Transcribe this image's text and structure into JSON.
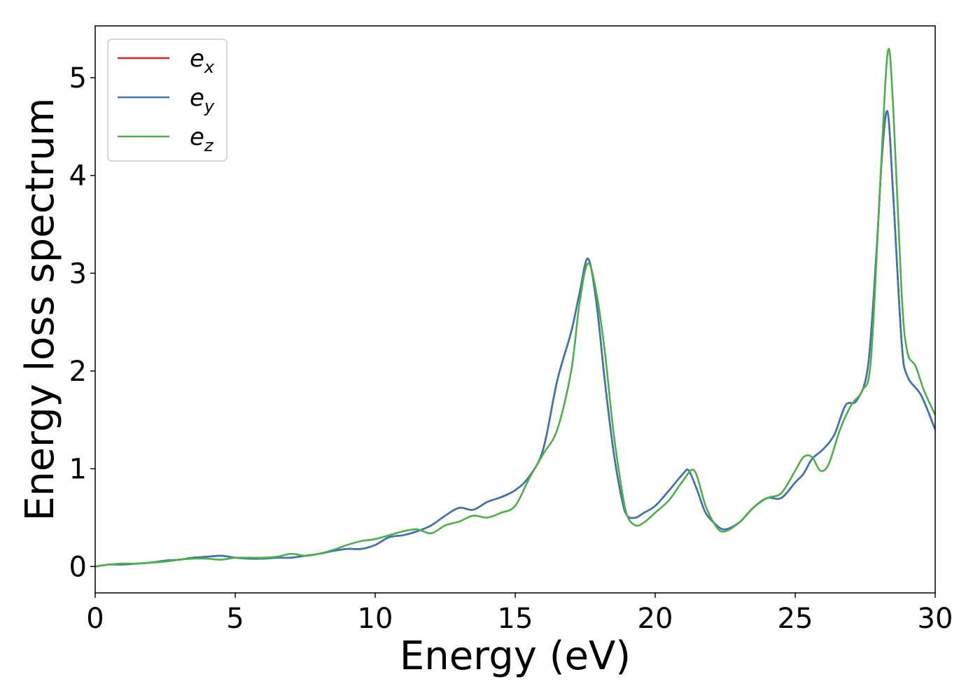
{
  "chart_data": {
    "type": "line",
    "title": "",
    "xlabel": "Energy (eV)",
    "ylabel": "Energy loss spectrum",
    "xlim": [
      0,
      30
    ],
    "ylim": [
      -0.27,
      5.53
    ],
    "xticks": [
      0,
      5,
      10,
      15,
      20,
      25,
      30
    ],
    "yticks": [
      0,
      1,
      2,
      3,
      4,
      5
    ],
    "grid": false,
    "legend_position": "upper left",
    "series": [
      {
        "name": "e_x",
        "legend_base": "e",
        "legend_sub": "x",
        "color": "#d62728",
        "x": [
          0,
          0.5,
          1,
          1.5,
          2,
          2.5,
          3,
          3.5,
          4,
          4.5,
          5,
          5.5,
          6,
          6.5,
          7,
          7.5,
          8,
          8.5,
          9,
          9.5,
          10,
          10.5,
          11,
          11.5,
          12,
          12.5,
          13,
          13.5,
          14,
          14.5,
          15,
          15.5,
          16,
          16.5,
          17,
          17.3,
          17.6,
          17.9,
          18.2,
          18.5,
          18.8,
          19,
          19.3,
          19.6,
          20,
          20.5,
          21,
          21.2,
          21.5,
          21.8,
          22.2,
          22.5,
          23,
          23.5,
          24,
          24.5,
          25,
          25.3,
          25.6,
          26,
          26.4,
          26.8,
          27.2,
          27.6,
          27.9,
          28.1,
          28.3,
          28.5,
          28.8,
          29,
          29.5,
          30
        ],
        "values": [
          0.0,
          0.02,
          0.02,
          0.03,
          0.04,
          0.06,
          0.07,
          0.09,
          0.1,
          0.11,
          0.09,
          0.08,
          0.08,
          0.09,
          0.09,
          0.11,
          0.13,
          0.16,
          0.18,
          0.18,
          0.22,
          0.3,
          0.32,
          0.36,
          0.42,
          0.52,
          0.6,
          0.58,
          0.66,
          0.71,
          0.78,
          0.92,
          1.2,
          1.9,
          2.4,
          2.8,
          3.15,
          2.7,
          1.9,
          1.2,
          0.7,
          0.52,
          0.5,
          0.55,
          0.62,
          0.78,
          0.95,
          0.98,
          0.78,
          0.55,
          0.42,
          0.38,
          0.45,
          0.6,
          0.7,
          0.7,
          0.86,
          0.95,
          1.1,
          1.2,
          1.35,
          1.65,
          1.7,
          2.05,
          3.2,
          4.2,
          4.65,
          3.8,
          2.3,
          1.95,
          1.75,
          1.4
        ]
      },
      {
        "name": "e_y",
        "legend_base": "e",
        "legend_sub": "y",
        "color": "#3c76b0",
        "x": [
          0,
          0.5,
          1,
          1.5,
          2,
          2.5,
          3,
          3.5,
          4,
          4.5,
          5,
          5.5,
          6,
          6.5,
          7,
          7.5,
          8,
          8.5,
          9,
          9.5,
          10,
          10.5,
          11,
          11.5,
          12,
          12.5,
          13,
          13.5,
          14,
          14.5,
          15,
          15.5,
          16,
          16.5,
          17,
          17.3,
          17.6,
          17.9,
          18.2,
          18.5,
          18.8,
          19,
          19.3,
          19.6,
          20,
          20.5,
          21,
          21.2,
          21.5,
          21.8,
          22.2,
          22.5,
          23,
          23.5,
          24,
          24.5,
          25,
          25.3,
          25.6,
          26,
          26.4,
          26.8,
          27.2,
          27.6,
          27.9,
          28.1,
          28.3,
          28.5,
          28.8,
          29,
          29.5,
          30
        ],
        "values": [
          0.0,
          0.02,
          0.02,
          0.03,
          0.04,
          0.06,
          0.07,
          0.09,
          0.1,
          0.11,
          0.09,
          0.08,
          0.08,
          0.09,
          0.09,
          0.11,
          0.13,
          0.16,
          0.18,
          0.18,
          0.22,
          0.3,
          0.32,
          0.36,
          0.42,
          0.52,
          0.6,
          0.58,
          0.66,
          0.71,
          0.78,
          0.92,
          1.2,
          1.9,
          2.4,
          2.8,
          3.15,
          2.7,
          1.9,
          1.2,
          0.7,
          0.52,
          0.5,
          0.55,
          0.62,
          0.78,
          0.95,
          0.98,
          0.78,
          0.55,
          0.42,
          0.38,
          0.45,
          0.6,
          0.7,
          0.7,
          0.86,
          0.95,
          1.1,
          1.2,
          1.35,
          1.65,
          1.7,
          2.05,
          3.2,
          4.2,
          4.65,
          3.8,
          2.3,
          1.95,
          1.75,
          1.4
        ]
      },
      {
        "name": "e_z",
        "legend_base": "e",
        "legend_sub": "z",
        "color": "#4daf4a",
        "x": [
          0,
          0.5,
          1,
          1.5,
          2,
          2.5,
          3,
          3.5,
          4,
          4.5,
          5,
          5.5,
          6,
          6.5,
          7,
          7.5,
          8,
          8.5,
          9,
          9.5,
          10,
          10.5,
          11,
          11.5,
          12,
          12.5,
          13,
          13.5,
          14,
          14.5,
          15,
          15.5,
          16,
          16.5,
          17,
          17.3,
          17.6,
          17.9,
          18.2,
          18.5,
          18.8,
          19,
          19.3,
          19.6,
          20,
          20.5,
          21,
          21.4,
          21.8,
          22.2,
          22.5,
          23,
          23.5,
          24,
          24.5,
          25,
          25.3,
          25.6,
          25.9,
          26.2,
          26.6,
          27,
          27.4,
          27.7,
          28,
          28.3,
          28.5,
          28.8,
          29,
          29.3,
          29.6,
          30
        ],
        "values": [
          0.0,
          0.02,
          0.03,
          0.03,
          0.04,
          0.05,
          0.07,
          0.08,
          0.08,
          0.07,
          0.09,
          0.09,
          0.09,
          0.1,
          0.13,
          0.11,
          0.13,
          0.17,
          0.22,
          0.26,
          0.28,
          0.32,
          0.36,
          0.38,
          0.34,
          0.42,
          0.46,
          0.52,
          0.5,
          0.55,
          0.62,
          0.9,
          1.15,
          1.4,
          2.0,
          2.7,
          3.1,
          2.8,
          2.2,
          1.4,
          0.8,
          0.52,
          0.42,
          0.45,
          0.55,
          0.68,
          0.88,
          0.98,
          0.62,
          0.4,
          0.36,
          0.45,
          0.6,
          0.7,
          0.75,
          0.98,
          1.12,
          1.12,
          0.98,
          1.05,
          1.4,
          1.65,
          1.8,
          2.1,
          3.7,
          5.25,
          4.7,
          2.8,
          2.2,
          2.05,
          1.8,
          1.55
        ]
      }
    ]
  }
}
